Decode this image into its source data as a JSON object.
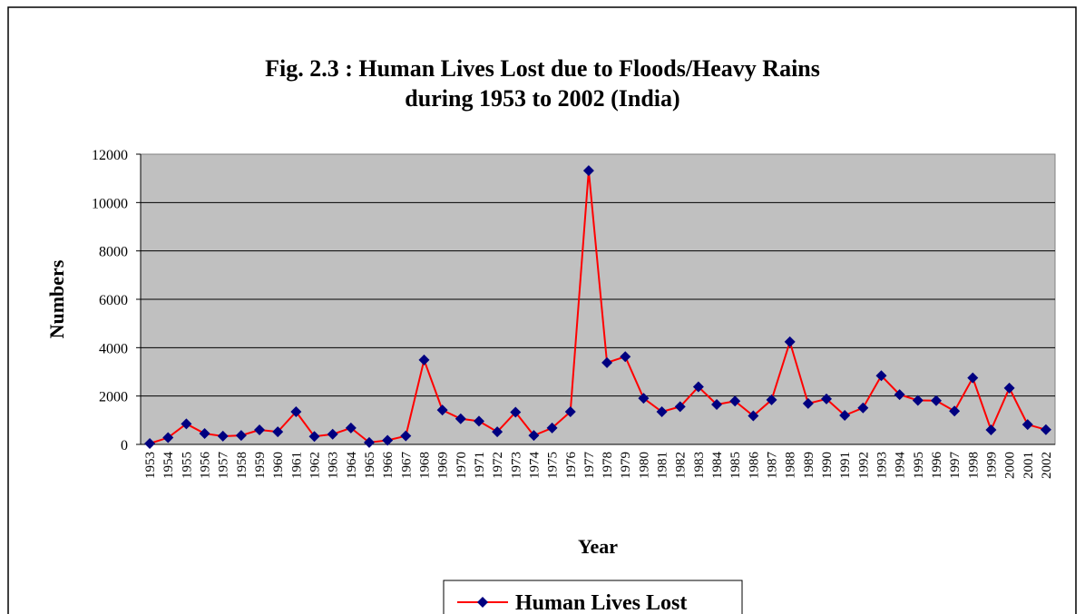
{
  "chart_data": {
    "type": "line",
    "title": "Fig. 2.3 : Human Lives Lost due to Floods/Heavy Rains",
    "subtitle": "during 1953 to 2002 (India)",
    "x_label": "Year",
    "y_label": "Numbers",
    "categories": [
      "1953",
      "1954",
      "1955",
      "1956",
      "1957",
      "1958",
      "1959",
      "1960",
      "1961",
      "1962",
      "1963",
      "1964",
      "1965",
      "1966",
      "1967",
      "1968",
      "1969",
      "1970",
      "1971",
      "1972",
      "1973",
      "1974",
      "1975",
      "1976",
      "1977",
      "1978",
      "1979",
      "1980",
      "1981",
      "1982",
      "1983",
      "1984",
      "1985",
      "1986",
      "1987",
      "1988",
      "1989",
      "1990",
      "1991",
      "1992",
      "1993",
      "1994",
      "1995",
      "1996",
      "1997",
      "1998",
      "1999",
      "2000",
      "2001",
      "2002"
    ],
    "series": [
      {
        "name": "Human Lives Lost",
        "color": "#ff0000",
        "marker_color": "#000080",
        "values": [
          37,
          280,
          850,
          450,
          340,
          370,
          600,
          520,
          1350,
          330,
          420,
          680,
          80,
          170,
          350,
          3490,
          1420,
          1060,
          960,
          520,
          1330,
          370,
          680,
          1350,
          11320,
          3380,
          3630,
          1910,
          1350,
          1560,
          2380,
          1650,
          1790,
          1180,
          1840,
          4240,
          1690,
          1880,
          1200,
          1510,
          2840,
          2060,
          1820,
          1810,
          1380,
          2750,
          600,
          2330,
          820,
          610
        ]
      }
    ],
    "ylim": [
      0,
      12000
    ],
    "yticks": [
      0,
      2000,
      4000,
      6000,
      8000,
      10000,
      12000
    ],
    "grid": true,
    "legend": "bottom"
  }
}
